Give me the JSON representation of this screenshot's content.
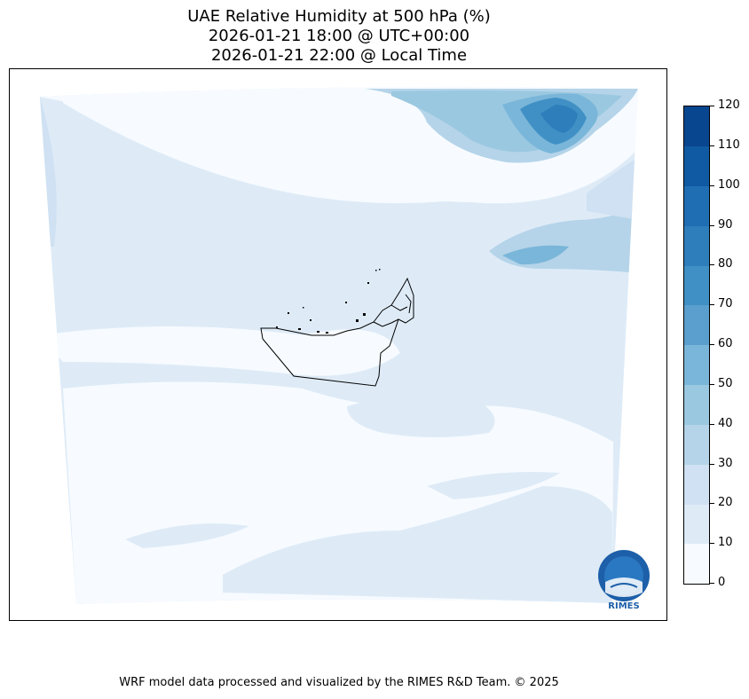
{
  "title": {
    "line1": "UAE Relative Humidity at 500 hPa (%)",
    "line2": "2026-01-21 18:00 @ UTC+00:00",
    "line3": "2026-01-21 22:00 @ Local Time"
  },
  "colorbar": {
    "levels": [
      0,
      10,
      20,
      30,
      40,
      50,
      60,
      70,
      80,
      90,
      100,
      110,
      120
    ],
    "labels": [
      "0",
      "10",
      "20",
      "30",
      "40",
      "50",
      "60",
      "70",
      "80",
      "90",
      "100",
      "110",
      "120"
    ],
    "colors": [
      "#f7fbff",
      "#deebf7",
      "#cfe1f2",
      "#b5d4e9",
      "#9ac8e0",
      "#7ab6d9",
      "#5a9fcd",
      "#4090c5",
      "#2e7ebc",
      "#1f6eb3",
      "#0f5aa3",
      "#08468f",
      "#08306b"
    ]
  },
  "logo": {
    "text": "RIMES"
  },
  "footer": {
    "credit": "WRF model data processed and visualized by the RIMES R&D Team. © 2025"
  }
}
